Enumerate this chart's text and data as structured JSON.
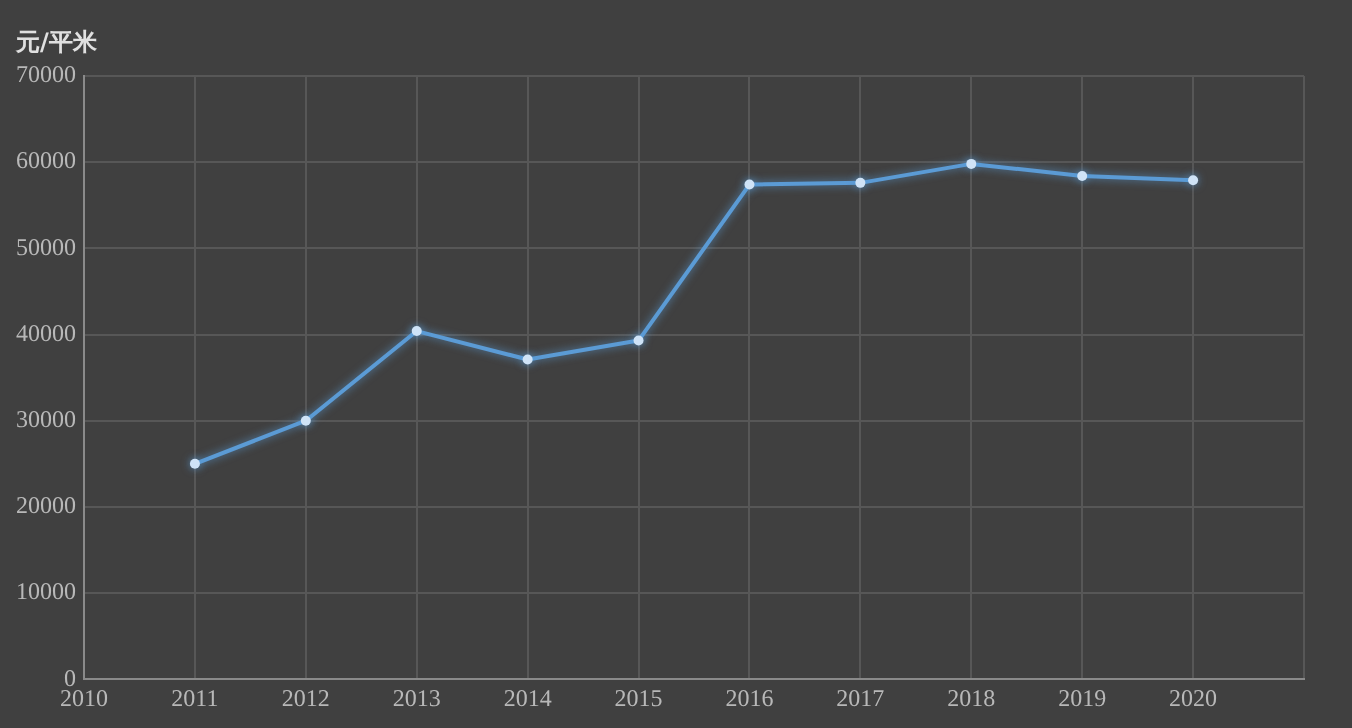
{
  "chart_data": {
    "type": "line",
    "ylabel": "元/平米",
    "x": [
      2011,
      2012,
      2013,
      2014,
      2015,
      2016,
      2017,
      2018,
      2019,
      2020
    ],
    "series": [
      {
        "color": "#5b9bd5",
        "values": [
          25000,
          30000,
          40400,
          37100,
          39300,
          57400,
          57600,
          59800,
          58400,
          57900
        ]
      }
    ],
    "xlim": [
      2010,
      2021
    ],
    "xticks": [
      2010,
      2011,
      2012,
      2013,
      2014,
      2015,
      2016,
      2017,
      2018,
      2019,
      2020,
      {
        "value": 2021,
        "label": null
      }
    ],
    "ylim": [
      0,
      70000
    ],
    "yticks": [
      0,
      10000,
      20000,
      30000,
      40000,
      50000,
      60000,
      70000
    ],
    "grid": true,
    "legend": false,
    "marker": "circle",
    "line_style": "solid"
  }
}
